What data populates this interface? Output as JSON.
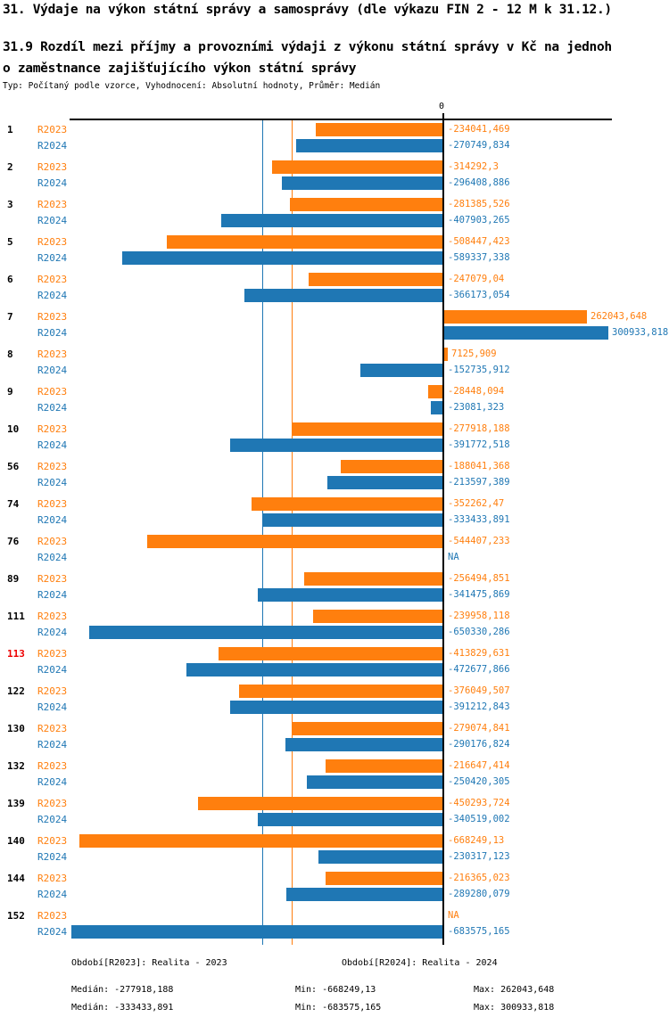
{
  "page": {
    "title": "31. Výdaje na výkon státní správy a samosprávy (dle výkazu FIN 2 - 12 M k 31.12.)",
    "subtitle_line1": "31.9 Rozdíl mezi příjmy a provozními výdaji z výkonu státní správy v Kč na jednoh",
    "subtitle_line2": "o zaměstnance zajišťujícího výkon státní správy",
    "meta": "Typ: Počítaný podle vzorce, Vyhodnocení: Absolutní hodnoty, Průměr: Medián"
  },
  "colors": {
    "r2023": "#ff7f0e",
    "r2024": "#1f77b4",
    "category": "#000000",
    "highlight": "#ee0000",
    "axis": "#000000"
  },
  "chart_data": {
    "type": "bar",
    "orientation": "horizontal",
    "zero_label": "0",
    "na_label": "NA",
    "axis": {
      "min": -683575.165,
      "max": 300933.818
    },
    "medians": {
      "r2023": -277918.188,
      "r2024": -333433.891
    },
    "series": [
      {
        "key": "r2023",
        "label": "R2023"
      },
      {
        "key": "r2024",
        "label": "R2024"
      }
    ],
    "categories": [
      {
        "id": "1",
        "highlight": false,
        "r2023": -234041.469,
        "r2023_label": "-234041,469",
        "r2024": -270749.834,
        "r2024_label": "-270749,834"
      },
      {
        "id": "2",
        "highlight": false,
        "r2023": -314292.3,
        "r2023_label": "-314292,3",
        "r2024": -296408.886,
        "r2024_label": "-296408,886"
      },
      {
        "id": "3",
        "highlight": false,
        "r2023": -281385.526,
        "r2023_label": "-281385,526",
        "r2024": -407903.265,
        "r2024_label": "-407903,265"
      },
      {
        "id": "5",
        "highlight": false,
        "r2023": -508447.423,
        "r2023_label": "-508447,423",
        "r2024": -589337.338,
        "r2024_label": "-589337,338"
      },
      {
        "id": "6",
        "highlight": false,
        "r2023": -247079.04,
        "r2023_label": "-247079,04",
        "r2024": -366173.054,
        "r2024_label": "-366173,054"
      },
      {
        "id": "7",
        "highlight": false,
        "r2023": 262043.648,
        "r2023_label": "262043,648",
        "r2024": 300933.818,
        "r2024_label": "300933,818"
      },
      {
        "id": "8",
        "highlight": false,
        "r2023": 7125.909,
        "r2023_label": "7125,909",
        "r2024": -152735.912,
        "r2024_label": "-152735,912"
      },
      {
        "id": "9",
        "highlight": false,
        "r2023": -28448.094,
        "r2023_label": "-28448,094",
        "r2024": -23081.323,
        "r2024_label": "-23081,323"
      },
      {
        "id": "10",
        "highlight": false,
        "r2023": -277918.188,
        "r2023_label": "-277918,188",
        "r2024": -391772.518,
        "r2024_label": "-391772,518"
      },
      {
        "id": "56",
        "highlight": false,
        "r2023": -188041.368,
        "r2023_label": "-188041,368",
        "r2024": -213597.389,
        "r2024_label": "-213597,389"
      },
      {
        "id": "74",
        "highlight": false,
        "r2023": -352262.47,
        "r2023_label": "-352262,47",
        "r2024": -333433.891,
        "r2024_label": "-333433,891"
      },
      {
        "id": "76",
        "highlight": false,
        "r2023": -544407.233,
        "r2023_label": "-544407,233",
        "r2024": null,
        "r2024_label": "NA"
      },
      {
        "id": "89",
        "highlight": false,
        "r2023": -256494.851,
        "r2023_label": "-256494,851",
        "r2024": -341475.869,
        "r2024_label": "-341475,869"
      },
      {
        "id": "111",
        "highlight": false,
        "r2023": -239958.118,
        "r2023_label": "-239958,118",
        "r2024": -650330.286,
        "r2024_label": "-650330,286"
      },
      {
        "id": "113",
        "highlight": true,
        "r2023": -413829.631,
        "r2023_label": "-413829,631",
        "r2024": -472677.866,
        "r2024_label": "-472677,866"
      },
      {
        "id": "122",
        "highlight": false,
        "r2023": -376049.507,
        "r2023_label": "-376049,507",
        "r2024": -391212.843,
        "r2024_label": "-391212,843"
      },
      {
        "id": "130",
        "highlight": false,
        "r2023": -279074.841,
        "r2023_label": "-279074,841",
        "r2024": -290176.824,
        "r2024_label": "-290176,824"
      },
      {
        "id": "132",
        "highlight": false,
        "r2023": -216647.414,
        "r2023_label": "-216647,414",
        "r2024": -250420.305,
        "r2024_label": "-250420,305"
      },
      {
        "id": "139",
        "highlight": false,
        "r2023": -450293.724,
        "r2023_label": "-450293,724",
        "r2024": -340519.002,
        "r2024_label": "-340519,002"
      },
      {
        "id": "140",
        "highlight": false,
        "r2023": -668249.13,
        "r2023_label": "-668249,13",
        "r2024": -230317.123,
        "r2024_label": "-230317,123"
      },
      {
        "id": "144",
        "highlight": false,
        "r2023": -216365.023,
        "r2023_label": "-216365,023",
        "r2024": -289280.079,
        "r2024_label": "-289280,079"
      },
      {
        "id": "152",
        "highlight": false,
        "r2023": null,
        "r2023_label": "NA",
        "r2024": -683575.165,
        "r2024_label": "-683575,165"
      }
    ]
  },
  "legend": {
    "r2023": "Období[R2023]: Realita - 2023",
    "r2024": "Období[R2024]: Realita - 2024"
  },
  "stats": {
    "r2023": {
      "median": "Medián: -277918,188",
      "min": "Min: -668249,13",
      "max": "Max: 262043,648"
    },
    "r2024": {
      "median": "Medián: -333433,891",
      "min": "Min: -683575,165",
      "max": "Max: 300933,818"
    }
  }
}
